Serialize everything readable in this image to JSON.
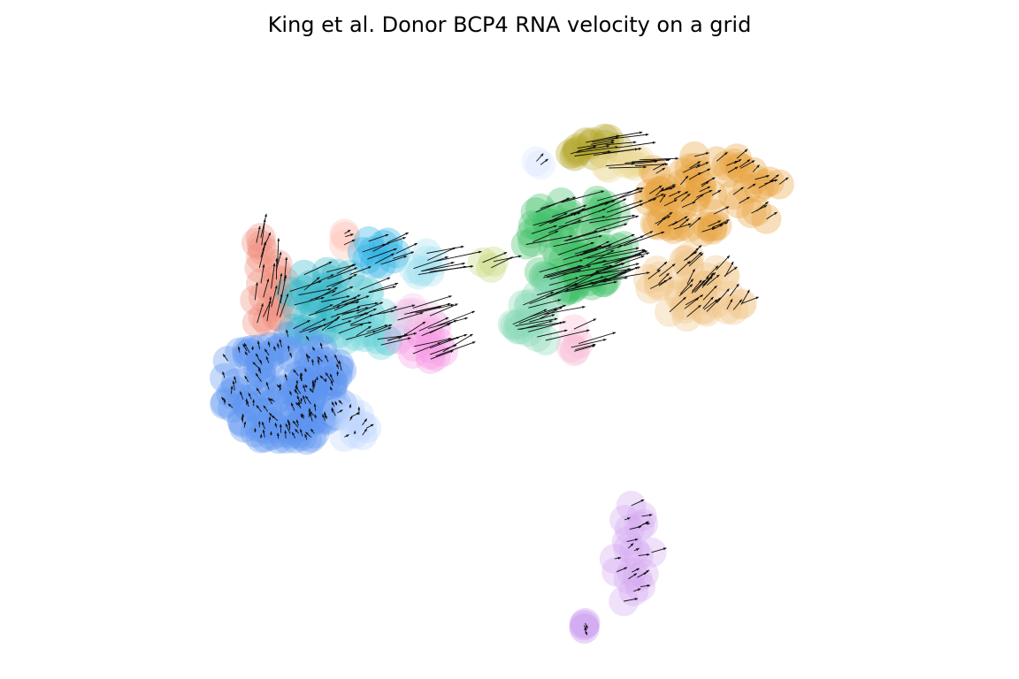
{
  "chart_data": {
    "type": "scatter",
    "title": "King et al. Donor BCP4 RNA velocity on a grid",
    "xlabel": "",
    "ylabel": "",
    "axes_visible": false,
    "grid": false,
    "legend": "none",
    "xlim": [
      0,
      100
    ],
    "ylim": [
      0,
      100
    ],
    "clusters": [
      {
        "color": "#F28E7F",
        "cx": 18.5,
        "cy": 63.5,
        "rx": 2.2,
        "ry": 9.5,
        "n": 22,
        "dx": 0.6,
        "dy": 3.5
      },
      {
        "color": "#FFC0B5",
        "cx": 27.6,
        "cy": 70.5,
        "rx": 1.0,
        "ry": 1.5,
        "n": 3,
        "dx": 0.8,
        "dy": 0.8
      },
      {
        "color": "#36B7C9",
        "cx": 26.0,
        "cy": 59.5,
        "rx": 5.5,
        "ry": 6.5,
        "n": 36,
        "dx": 3.0,
        "dy": 1.5
      },
      {
        "color": "#6CD3D9",
        "cx": 31.5,
        "cy": 57.0,
        "rx": 4.0,
        "ry": 5.0,
        "n": 20,
        "dx": 3.0,
        "dy": 1.2
      },
      {
        "color": "#2AB2E6",
        "cx": 33.0,
        "cy": 69.0,
        "rx": 2.8,
        "ry": 3.0,
        "n": 10,
        "dx": 3.0,
        "dy": 1.5
      },
      {
        "color": "#A7E3F2",
        "cx": 38.5,
        "cy": 67.0,
        "rx": 2.5,
        "ry": 2.5,
        "n": 8,
        "dx": 5.0,
        "dy": 1.5
      },
      {
        "color": "#5F95F2",
        "cx": 20.5,
        "cy": 45.5,
        "rx": 8.5,
        "ry": 9.0,
        "n": 130,
        "dx": -0.3,
        "dy": 1.0
      },
      {
        "color": "#BFD8FF",
        "cx": 29.0,
        "cy": 40.0,
        "rx": 2.5,
        "ry": 3.0,
        "n": 10,
        "dx": 0.5,
        "dy": 0.8
      },
      {
        "color": "#F59BE4",
        "cx": 38.5,
        "cy": 53.5,
        "rx": 3.5,
        "ry": 3.5,
        "n": 14,
        "dx": 4.5,
        "dy": 2.0
      },
      {
        "color": "#F3C3E8",
        "cx": 37.5,
        "cy": 58.0,
        "rx": 2.0,
        "ry": 2.0,
        "n": 5,
        "dx": 4.0,
        "dy": 1.5
      },
      {
        "color": "#C5D97C",
        "cx": 46.8,
        "cy": 66.8,
        "rx": 1.0,
        "ry": 1.5,
        "n": 3,
        "dx": 4.0,
        "dy": 1.5
      },
      {
        "color": "#3FBF68",
        "cx": 58.0,
        "cy": 70.0,
        "rx": 6.5,
        "ry": 8.5,
        "n": 70,
        "dx": 5.0,
        "dy": 2.0
      },
      {
        "color": "#8AD9B6",
        "cx": 53.0,
        "cy": 59.0,
        "rx": 3.5,
        "ry": 6.0,
        "n": 20,
        "dx": 4.5,
        "dy": 1.8
      },
      {
        "color": "#F8BCD8",
        "cx": 57.5,
        "cy": 53.5,
        "rx": 1.6,
        "ry": 2.5,
        "n": 5,
        "dx": 3.5,
        "dy": 1.5
      },
      {
        "color": "#B4A72A",
        "cx": 60.5,
        "cy": 85.5,
        "rx": 4.0,
        "ry": 2.5,
        "n": 14,
        "dx": 4.5,
        "dy": 0.8
      },
      {
        "color": "#EFD998",
        "cx": 64.0,
        "cy": 83.0,
        "rx": 2.5,
        "ry": 2.5,
        "n": 8,
        "dx": 4.5,
        "dy": 0.4
      },
      {
        "color": "#D6E6FF",
        "cx": 53.2,
        "cy": 82.5,
        "rx": 0.7,
        "ry": 1.0,
        "n": 2,
        "dx": 1.0,
        "dy": 1.0
      },
      {
        "color": "#E8A33E",
        "cx": 75.0,
        "cy": 78.0,
        "rx": 10.0,
        "ry": 7.0,
        "n": 60,
        "dx": 1.5,
        "dy": 1.0
      },
      {
        "color": "#F2C78A",
        "cx": 73.5,
        "cy": 62.0,
        "rx": 6.5,
        "ry": 6.0,
        "n": 40,
        "dx": 1.5,
        "dy": 2.0
      },
      {
        "color": "#D3A8F2",
        "cx": 65.5,
        "cy": 17.5,
        "rx": 2.5,
        "ry": 9.0,
        "n": 20,
        "dx": 1.2,
        "dy": 0.5
      },
      {
        "color": "#C38BEF",
        "cx": 59.5,
        "cy": 6.5,
        "rx": 1.0,
        "ry": 1.0,
        "n": 3,
        "dx": 0.4,
        "dy": -1.0
      }
    ]
  }
}
